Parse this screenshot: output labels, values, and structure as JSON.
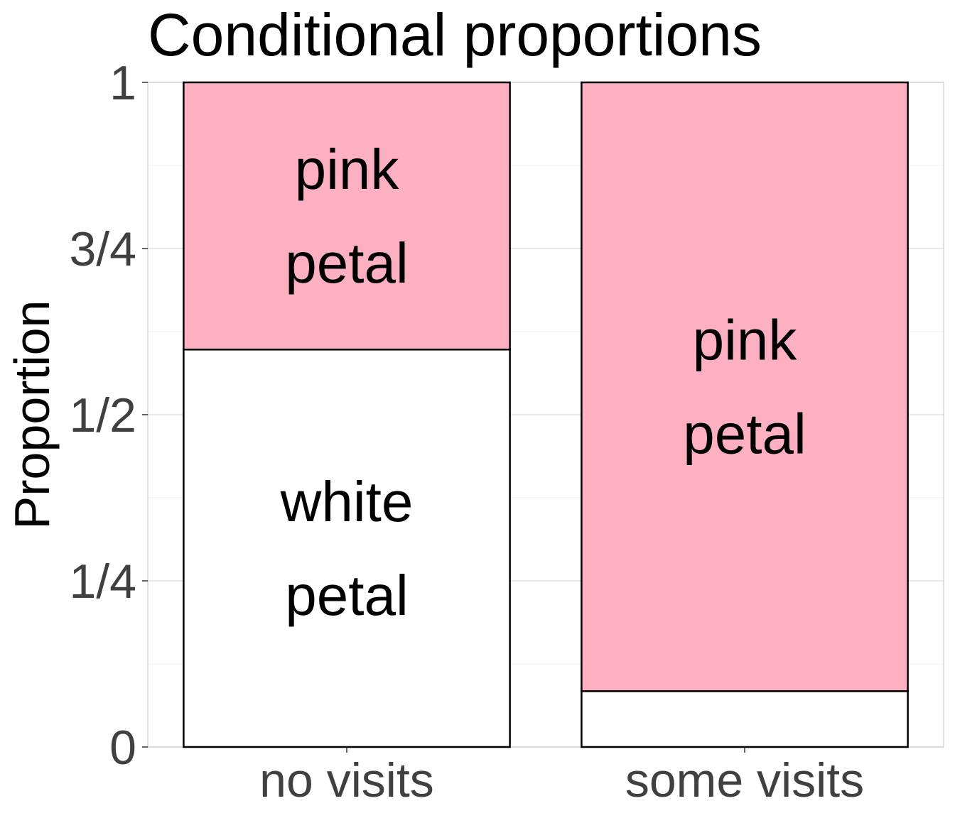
{
  "chart_data": {
    "type": "bar",
    "stacked": true,
    "title": "Conditional proportions",
    "xlabel": "",
    "ylabel": "Proportion",
    "ylim": [
      0,
      1
    ],
    "y_ticks": [
      {
        "value": 0,
        "label": "0"
      },
      {
        "value": 0.25,
        "label": "1/4"
      },
      {
        "value": 0.5,
        "label": "1/2"
      },
      {
        "value": 0.75,
        "label": "3/4"
      },
      {
        "value": 1,
        "label": "1"
      }
    ],
    "categories": [
      "no visits",
      "some visits"
    ],
    "series": [
      {
        "name": "white petal",
        "color": "#ffffff",
        "values": [
          0.598,
          0.084
        ],
        "labels": [
          "white\npetal",
          ""
        ]
      },
      {
        "name": "pink petal",
        "color": "#fcb0c2",
        "values": [
          0.402,
          0.916
        ],
        "labels": [
          "pink\npetal",
          "pink\npetal"
        ]
      }
    ],
    "grid": true,
    "legend": "none"
  }
}
